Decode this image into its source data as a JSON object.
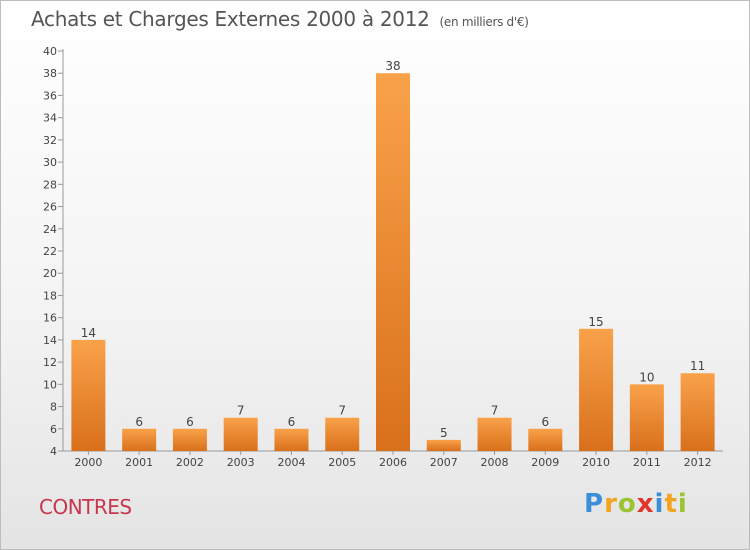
{
  "header": {
    "title": "Achats et Charges Externes 2000 à 2012",
    "unit": "(en milliers d'€)"
  },
  "footer": {
    "city": "CONTRES",
    "logo": "Proxiti"
  },
  "colors": {
    "bar_light": "#f9a24a",
    "bar_dark": "#d9701b",
    "city_text": "#c8364e",
    "logo_letters": [
      "#3b8ed8",
      "#f2a41c",
      "#9cc331",
      "#e2352d",
      "#3b8ed8",
      "#f2a41c",
      "#9cc331"
    ]
  },
  "chart_data": {
    "type": "bar",
    "title": "Achats et Charges Externes 2000 à 2012",
    "subtitle": "(en milliers d'€)",
    "categories": [
      "2000",
      "2001",
      "2002",
      "2003",
      "2004",
      "2005",
      "2006",
      "2007",
      "2008",
      "2009",
      "2010",
      "2011",
      "2012"
    ],
    "values": [
      14,
      6,
      6,
      7,
      6,
      7,
      38,
      5,
      7,
      6,
      15,
      10,
      11
    ],
    "data_labels": [
      "14",
      "6",
      "6",
      "7",
      "6",
      "7",
      "38",
      "5",
      "7",
      "6",
      "15",
      "10",
      "11"
    ],
    "ylim": [
      4,
      40
    ],
    "yticks": [
      4,
      6,
      8,
      10,
      12,
      14,
      16,
      18,
      20,
      22,
      24,
      26,
      28,
      30,
      32,
      34,
      36,
      38,
      40
    ],
    "grid": false,
    "legend": "none"
  }
}
